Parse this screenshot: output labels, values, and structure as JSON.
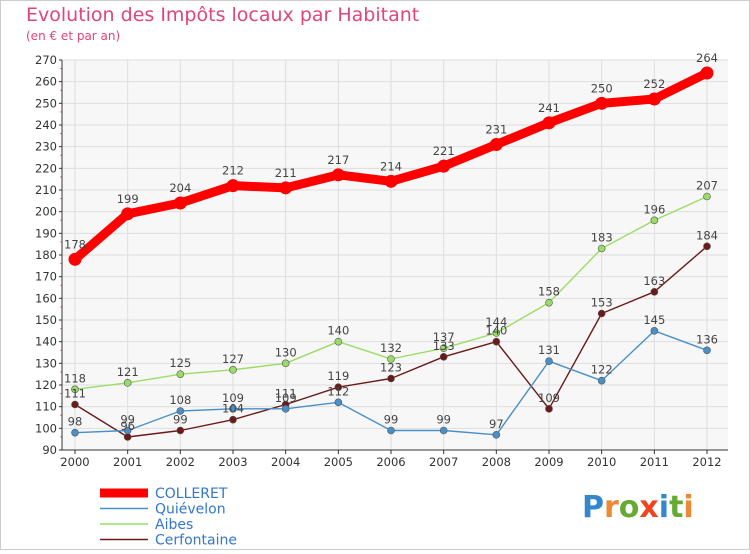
{
  "chart_data": {
    "type": "line",
    "title": "Evolution des Impôts locaux par Habitant",
    "subtitle": "(en € et par an)",
    "xlabel": "",
    "ylabel": "",
    "x": [
      "2000",
      "2001",
      "2002",
      "2003",
      "2004",
      "2005",
      "2006",
      "2007",
      "2008",
      "2009",
      "2010",
      "2011",
      "2012"
    ],
    "ylim": [
      90,
      270
    ],
    "yticks": [
      "90",
      "100",
      "110",
      "120",
      "130",
      "140",
      "150",
      "160",
      "170",
      "180",
      "190",
      "200",
      "210",
      "220",
      "230",
      "240",
      "250",
      "260",
      "270"
    ],
    "grid": true,
    "legend_position": "bottom-left",
    "series": [
      {
        "name": "COLLERET",
        "color": "#ff0000",
        "values": [
          178,
          199,
          204,
          212,
          211,
          217,
          214,
          221,
          231,
          241,
          250,
          252,
          264
        ]
      },
      {
        "name": "Quiévelon",
        "color": "#4a90c8",
        "values": [
          98,
          99,
          108,
          109,
          109,
          112,
          99,
          99,
          97,
          131,
          122,
          145,
          136
        ]
      },
      {
        "name": "Aibes",
        "color": "#99dd66",
        "values": [
          118,
          121,
          125,
          127,
          130,
          140,
          132,
          137,
          144,
          158,
          183,
          196,
          207
        ]
      },
      {
        "name": "Cerfontaine",
        "color": "#6b1a1a",
        "values": [
          111,
          96,
          99,
          104,
          111,
          119,
          123,
          133,
          140,
          109,
          153,
          163,
          184
        ]
      }
    ]
  },
  "logo": {
    "text": "Proxiti"
  },
  "colors": {
    "title": "#e0457a",
    "axis": "#333333",
    "grid": "#dddddd",
    "plot_bg": "#f7f7f7"
  }
}
